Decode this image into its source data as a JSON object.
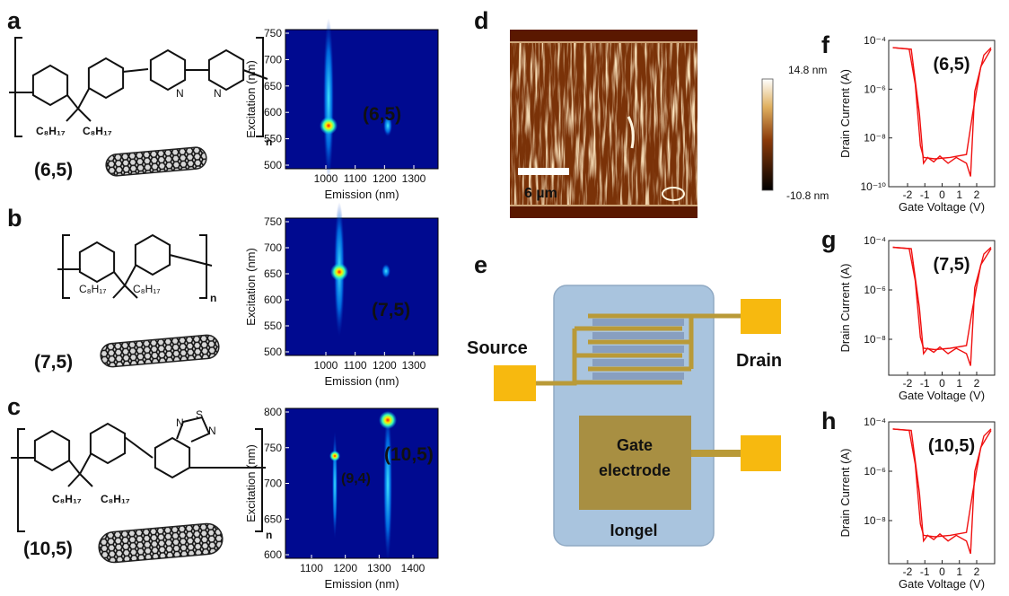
{
  "figure": {
    "a": {
      "label": "a",
      "substituents": [
        "C₈H₁₇",
        "C₈H₁₇"
      ],
      "repeat": "n",
      "tube": "(6,5)"
    },
    "b": {
      "label": "b",
      "substituents": [
        "C₈H₁₇",
        "C₈H₁₇"
      ],
      "repeat": "n",
      "tube": "(7,5)"
    },
    "c": {
      "label": "c",
      "substituents": [
        "C₈H₁₇",
        "C₈H₁₇"
      ],
      "heteroatoms": [
        "S",
        "N",
        "N"
      ],
      "repeat": "n",
      "tube": "(10,5)"
    },
    "ple": [
      {
        "x_title": "Emission (nm)",
        "y_title": "Excitation (nm)",
        "xticks": [
          1000,
          1100,
          1200,
          1300
        ],
        "yticks": [
          500,
          550,
          600,
          650,
          700,
          750
        ],
        "peaks": [
          "(6,5)"
        ]
      },
      {
        "x_title": "Emission (nm)",
        "y_title": "Excitation (nm)",
        "xticks": [
          1000,
          1100,
          1200,
          1300
        ],
        "yticks": [
          500,
          550,
          600,
          650,
          700,
          750
        ],
        "peaks": [
          "(7,5)"
        ]
      },
      {
        "x_title": "Emission (nm)",
        "y_title": "Excitation (nm)",
        "xticks": [
          1100,
          1200,
          1300,
          1400
        ],
        "yticks": [
          600,
          650,
          700,
          750,
          800
        ],
        "peaks": [
          "(9,4)",
          "(10,5)"
        ]
      }
    ],
    "d": {
      "label": "d",
      "scale_bar": "6 µm",
      "colorbar_max": "14.8 nm",
      "colorbar_min": "-10.8 nm"
    },
    "e": {
      "label": "e",
      "source": "Source",
      "drain": "Drain",
      "gate": [
        "Gate",
        "electrode"
      ],
      "substrate": "Iongel"
    },
    "transfer": [
      {
        "label": "f",
        "tube": "(6,5)",
        "x_title": "Gate Voltage (V)",
        "y_title": "Drain Current (A)",
        "xticks": [
          -2,
          -1,
          0,
          1,
          2
        ],
        "yticks": [
          "10⁻⁴",
          "10⁻⁶",
          "10⁻⁸",
          "10⁻¹⁰"
        ]
      },
      {
        "label": "g",
        "tube": "(7,5)",
        "x_title": "Gate Voltage (V)",
        "y_title": "Drain Current (A)",
        "xticks": [
          -2,
          -1,
          0,
          1,
          2
        ],
        "yticks": [
          "10⁻⁴",
          "10⁻⁶",
          "10⁻⁸"
        ]
      },
      {
        "label": "h",
        "tube": "(10,5)",
        "x_title": "Gate Voltage (V)",
        "y_title": "Drain Current (A)",
        "xticks": [
          -2,
          -1,
          0,
          1,
          2
        ],
        "yticks": [
          "10⁻⁴",
          "10⁻⁶",
          "10⁻⁸"
        ]
      }
    ]
  }
}
